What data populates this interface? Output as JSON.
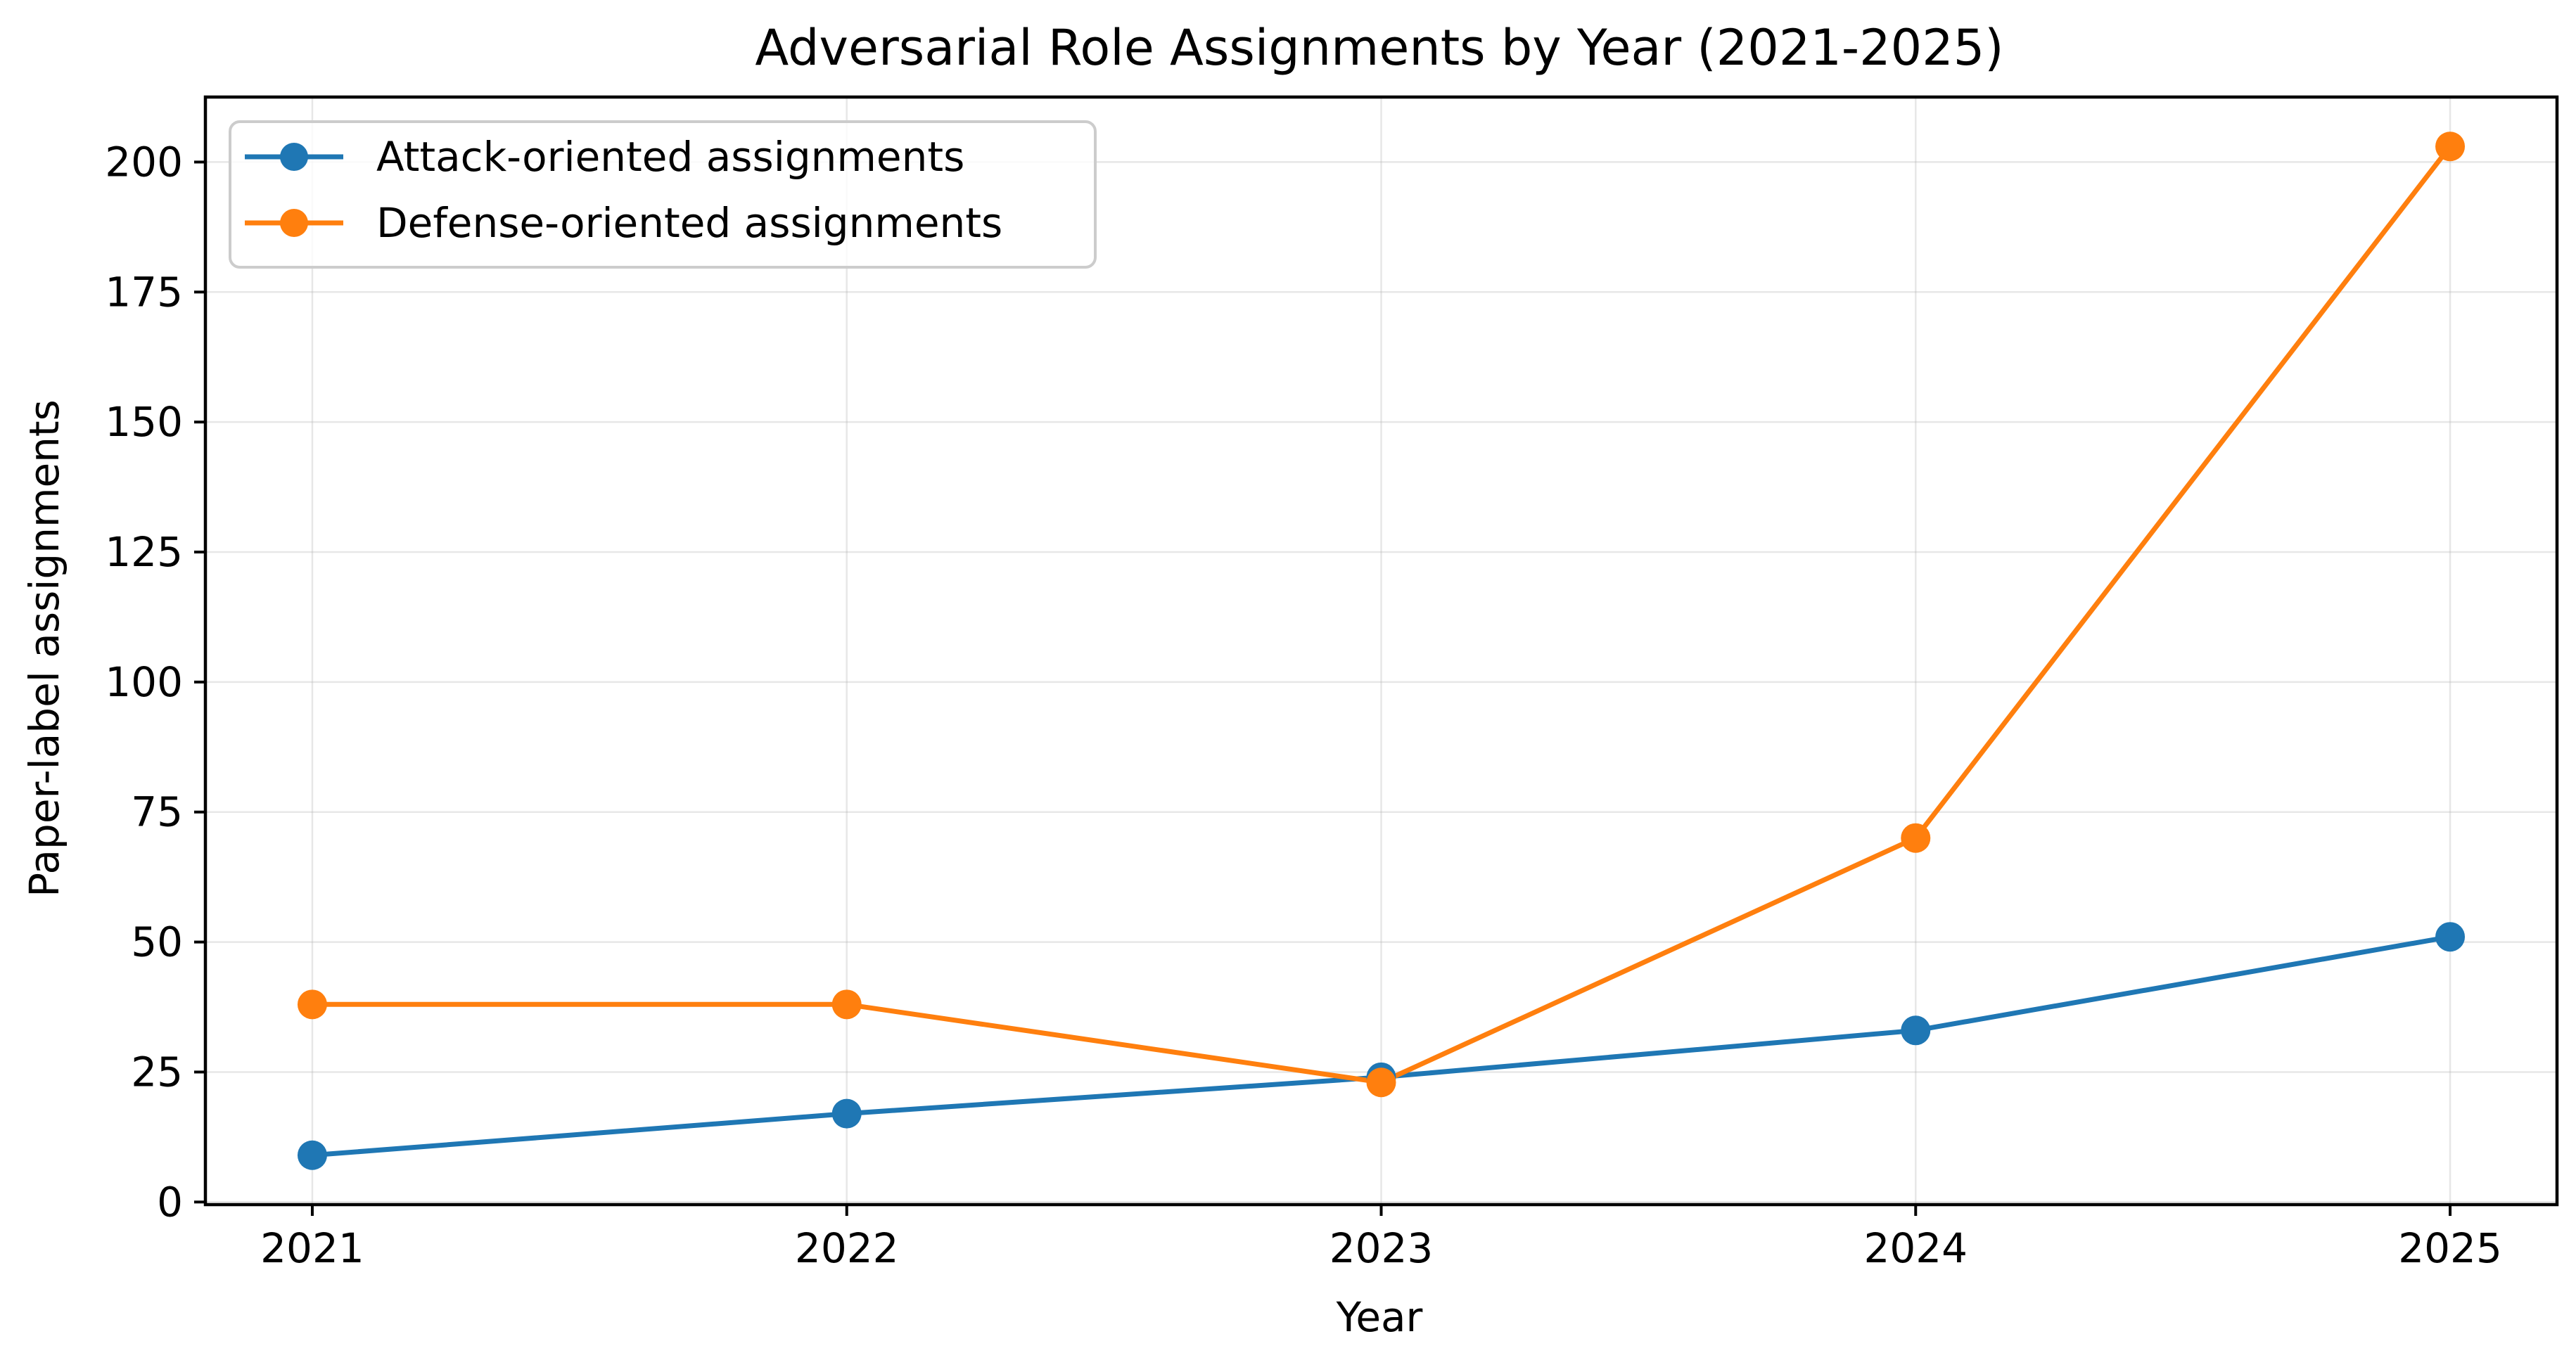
{
  "chart_data": {
    "type": "line",
    "title": "Adversarial Role Assignments by Year (2021-2025)",
    "xlabel": "Year",
    "ylabel": "Paper-label assignments",
    "x": [
      "2021",
      "2022",
      "2023",
      "2024",
      "2025"
    ],
    "xticks": [
      "2021",
      "2022",
      "2023",
      "2024",
      "2025"
    ],
    "yticks": [
      "0",
      "25",
      "50",
      "75",
      "100",
      "125",
      "150",
      "175",
      "200"
    ],
    "xlim": [
      -0.2,
      4.2
    ],
    "ylim": [
      -0.5,
      212.5
    ],
    "grid": true,
    "legend_position": "top-left",
    "series": [
      {
        "name": "Attack-oriented assignments",
        "color": "#1f77b4",
        "marker": "circle",
        "values": [
          9,
          17,
          24,
          33,
          51
        ]
      },
      {
        "name": "Defense-oriented assignments",
        "color": "#ff7f0e",
        "marker": "circle",
        "values": [
          38,
          38,
          23,
          70,
          203
        ]
      }
    ]
  }
}
